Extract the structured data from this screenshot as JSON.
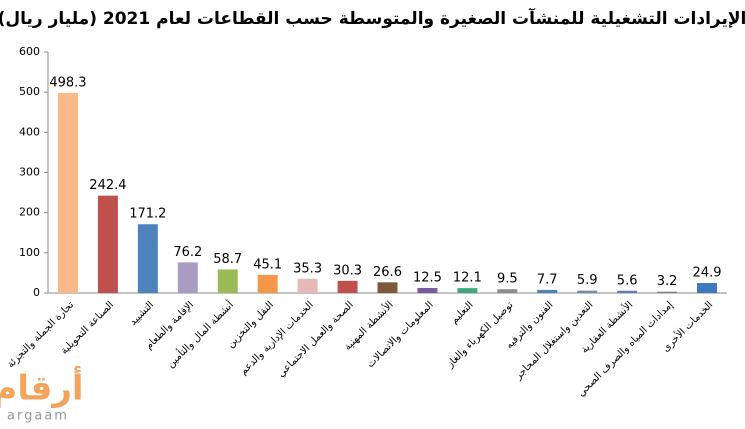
{
  "chart_data": {
    "type": "bar",
    "title": "الإيرادات التشغيلية للمنشآت الصغيرة والمتوسطة حسب القطاعات لعام 2021 (مليار ريال)",
    "categories": [
      "تجارة الجملة والتجزئة",
      "الصناعة التحويلية",
      "التشييد",
      "الإقامة والطعام",
      "أنشطة المال والتأمين",
      "النقل والتخزين",
      "الخدمات الإدارية والدعم",
      "الصحة والعمل الاجتماعي",
      "الأنشطة المهنية",
      "المعلومات والاتصالات",
      "التعليم",
      "توصيل الكهرباء والغاز",
      "الفنون والترفيه",
      "التعدين واستغلال المحاجر",
      "الأنشطة العقارية",
      "إمدادات المياه والصرف الصحي",
      "الخدمات الأخرى"
    ],
    "values": [
      498.3,
      242.4,
      171.2,
      76.2,
      58.7,
      45.1,
      35.3,
      30.3,
      26.6,
      12.5,
      12.1,
      9.5,
      7.7,
      5.9,
      5.6,
      3.2,
      24.9
    ],
    "colors": [
      "#f9b98a",
      "#c0504d",
      "#4f81bd",
      "#a99bc2",
      "#9bbb59",
      "#f79646",
      "#e6b9b8",
      "#c0504d",
      "#7f5a3a",
      "#7a5a9e",
      "#3fa77f",
      "#8c8c8c",
      "#4f81bd",
      "#6f8fa8",
      "#5b7fb0",
      "#7f7f7f",
      "#3e78bd"
    ],
    "ylim": [
      0,
      600
    ],
    "yticks": [
      0,
      100,
      200,
      300,
      400,
      500,
      600
    ],
    "grid": false
  },
  "logo": {
    "arabic": "أرقام",
    "latin": "argaam"
  }
}
